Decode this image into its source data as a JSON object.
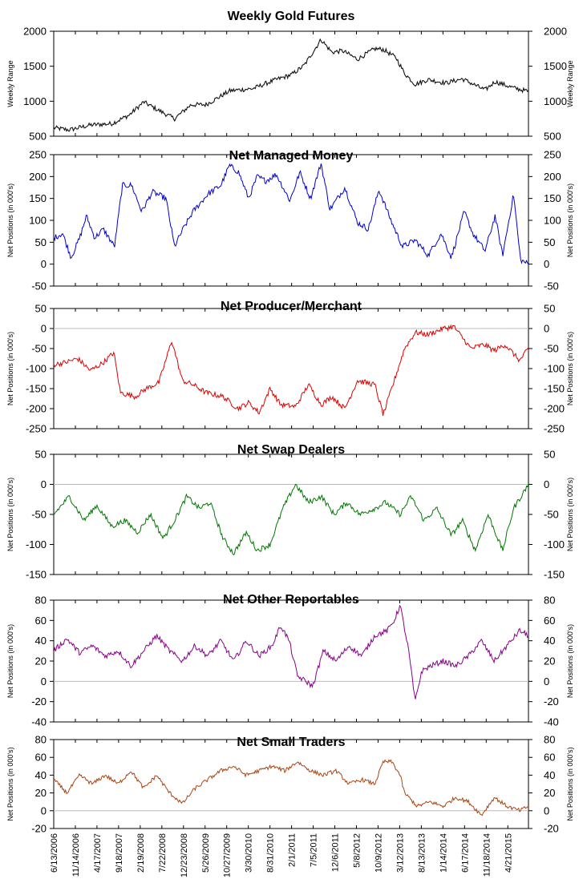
{
  "chart_data": [
    {
      "type": "line",
      "title": "Weekly Gold Futures",
      "ylabel": "Weekly Range",
      "ylim": [
        500,
        2000
      ],
      "yticks": [
        "2000",
        "1500",
        "1000",
        "500"
      ],
      "zero_line": false,
      "color": "#111111",
      "series": [
        {
          "x": [
            "2006-06-13",
            "2006-10-01",
            "2007-03-01",
            "2007-08-01",
            "2007-12-01",
            "2008-03-15",
            "2008-06-01",
            "2008-10-20",
            "2009-02-15",
            "2009-06-01",
            "2009-11-20",
            "2010-05-01",
            "2010-10-01",
            "2011-02-01",
            "2011-05-01",
            "2011-08-30",
            "2011-11-15",
            "2012-02-01",
            "2012-05-15",
            "2012-09-15",
            "2012-11-15",
            "2013-02-15",
            "2013-04-15",
            "2013-06-30",
            "2013-10-01",
            "2014-02-01",
            "2014-06-01",
            "2014-11-10",
            "2015-01-20",
            "2015-06-01",
            "2015-09-15"
          ],
          "values": [
            620,
            590,
            660,
            680,
            800,
            990,
            900,
            750,
            950,
            950,
            1150,
            1180,
            1300,
            1380,
            1510,
            1880,
            1700,
            1720,
            1600,
            1750,
            1740,
            1620,
            1400,
            1240,
            1310,
            1260,
            1320,
            1160,
            1280,
            1190,
            1140
          ]
        }
      ]
    },
    {
      "type": "line",
      "title": "Net Managed Money",
      "ylabel": "Net Positions (in 000's)",
      "ylim": [
        -50,
        250
      ],
      "yticks": [
        "250",
        "200",
        "150",
        "100",
        "50",
        "0",
        "-50"
      ],
      "zero_line": false,
      "color": "#0000cc",
      "series": [
        {
          "x": [
            "2006-06-13",
            "2006-08-15",
            "2006-10-15",
            "2006-12-15",
            "2007-02-01",
            "2007-04-01",
            "2007-06-01",
            "2007-08-20",
            "2007-10-15",
            "2007-12-20",
            "2008-03-01",
            "2008-05-15",
            "2008-08-20",
            "2008-10-20",
            "2008-12-20",
            "2009-03-01",
            "2009-06-15",
            "2009-09-15",
            "2009-11-15",
            "2010-01-20",
            "2010-04-01",
            "2010-06-01",
            "2010-08-01",
            "2010-10-15",
            "2011-01-20",
            "2011-04-01",
            "2011-06-15",
            "2011-08-30",
            "2011-11-01",
            "2012-02-15",
            "2012-05-15",
            "2012-08-01",
            "2012-10-15",
            "2013-01-15",
            "2013-04-01",
            "2013-07-01",
            "2013-10-01",
            "2014-01-01",
            "2014-03-15",
            "2014-06-15",
            "2014-08-15",
            "2014-11-10",
            "2015-01-20",
            "2015-03-15",
            "2015-06-01",
            "2015-07-20",
            "2015-09-15"
          ],
          "values": [
            60,
            70,
            15,
            60,
            110,
            60,
            80,
            40,
            180,
            180,
            120,
            165,
            150,
            40,
            80,
            120,
            160,
            180,
            225,
            210,
            150,
            200,
            190,
            205,
            145,
            210,
            150,
            230,
            125,
            175,
            95,
            80,
            170,
            95,
            40,
            55,
            20,
            70,
            15,
            120,
            70,
            30,
            110,
            20,
            160,
            10,
            0
          ]
        }
      ]
    },
    {
      "type": "line",
      "title": "Net Producer/Merchant",
      "ylabel": "Net Positions (in 000's)",
      "ylim": [
        -250,
        50
      ],
      "yticks": [
        "50",
        "0",
        "-50",
        "-100",
        "-150",
        "-200",
        "-250"
      ],
      "zero_line": true,
      "color": "#dd0000",
      "series": [
        {
          "x": [
            "2006-06-13",
            "2006-09-01",
            "2006-12-01",
            "2007-03-01",
            "2007-06-01",
            "2007-08-15",
            "2007-10-01",
            "2008-01-15",
            "2008-04-01",
            "2008-07-01",
            "2008-10-01",
            "2008-12-15",
            "2009-03-01",
            "2009-06-01",
            "2009-10-01",
            "2010-01-15",
            "2010-04-01",
            "2010-06-15",
            "2010-09-01",
            "2010-11-15",
            "2011-03-01",
            "2011-06-01",
            "2011-09-01",
            "2011-11-15",
            "2012-02-15",
            "2012-05-15",
            "2012-09-15",
            "2012-11-15",
            "2013-02-01",
            "2013-04-15",
            "2013-07-01",
            "2013-10-01",
            "2014-01-15",
            "2014-04-01",
            "2014-08-01",
            "2014-11-01",
            "2015-01-15",
            "2015-04-01",
            "2015-07-15",
            "2015-09-15"
          ],
          "values": [
            -90,
            -85,
            -75,
            -105,
            -85,
            -60,
            -160,
            -170,
            -150,
            -135,
            -30,
            -130,
            -140,
            -160,
            -170,
            -200,
            -185,
            -210,
            -150,
            -190,
            -195,
            -140,
            -190,
            -170,
            -200,
            -130,
            -140,
            -215,
            -130,
            -50,
            -10,
            -15,
            0,
            5,
            -50,
            -40,
            -55,
            -40,
            -80,
            -50
          ]
        }
      ]
    },
    {
      "type": "line",
      "title": "Net Swap Dealers",
      "ylabel": "Net Positions (in 000's)",
      "ylim": [
        -150,
        50
      ],
      "yticks": [
        "50",
        "0",
        "-50",
        "-100",
        "-150"
      ],
      "zero_line": true,
      "color": "#007700",
      "series": [
        {
          "x": [
            "2006-06-13",
            "2006-10-01",
            "2007-01-15",
            "2007-04-15",
            "2007-08-01",
            "2007-11-01",
            "2008-02-01",
            "2008-05-01",
            "2008-08-01",
            "2008-10-20",
            "2009-01-15",
            "2009-04-15",
            "2009-07-01",
            "2009-10-01",
            "2009-12-15",
            "2010-03-15",
            "2010-06-01",
            "2010-09-01",
            "2010-12-01",
            "2011-03-01",
            "2011-06-01",
            "2011-09-01",
            "2011-12-01",
            "2012-03-01",
            "2012-06-01",
            "2012-09-15",
            "2012-12-01",
            "2013-03-15",
            "2013-06-01",
            "2013-09-01",
            "2013-12-01",
            "2014-03-15",
            "2014-06-01",
            "2014-09-01",
            "2014-12-01",
            "2015-03-15",
            "2015-06-01",
            "2015-09-15"
          ],
          "values": [
            -50,
            -20,
            -60,
            -35,
            -70,
            -60,
            -80,
            -50,
            -90,
            -60,
            -20,
            -40,
            -30,
            -90,
            -115,
            -80,
            -110,
            -100,
            -40,
            0,
            -30,
            -20,
            -50,
            -30,
            -50,
            -40,
            -30,
            -50,
            -20,
            -60,
            -40,
            -85,
            -60,
            -110,
            -50,
            -110,
            -40,
            0
          ]
        }
      ]
    },
    {
      "type": "line",
      "title": "Net Other Reportables",
      "ylabel": "Net Positions (in 000's)",
      "ylim": [
        -40,
        80
      ],
      "yticks": [
        "80",
        "60",
        "40",
        "20",
        "0",
        "-20",
        "-40"
      ],
      "zero_line": true,
      "color": "#880088",
      "series": [
        {
          "x": [
            "2006-06-13",
            "2006-09-15",
            "2006-12-15",
            "2007-03-15",
            "2007-06-15",
            "2007-09-15",
            "2007-12-15",
            "2008-03-15",
            "2008-06-15",
            "2008-09-15",
            "2008-12-15",
            "2009-03-15",
            "2009-06-15",
            "2009-09-15",
            "2009-12-15",
            "2010-03-15",
            "2010-06-15",
            "2010-09-15",
            "2010-11-15",
            "2011-01-15",
            "2011-03-15",
            "2011-05-15",
            "2011-07-01",
            "2011-09-15",
            "2011-12-15",
            "2012-03-15",
            "2012-06-15",
            "2012-09-15",
            "2012-12-15",
            "2013-02-01",
            "2013-03-15",
            "2013-05-15",
            "2013-06-30",
            "2013-08-15",
            "2013-10-15",
            "2014-01-15",
            "2014-04-15",
            "2014-07-15",
            "2014-10-15",
            "2015-01-15",
            "2015-04-15",
            "2015-07-15",
            "2015-09-15"
          ],
          "values": [
            30,
            42,
            28,
            35,
            25,
            30,
            15,
            30,
            45,
            30,
            20,
            35,
            25,
            40,
            20,
            40,
            25,
            35,
            55,
            40,
            5,
            0,
            -5,
            30,
            20,
            35,
            25,
            45,
            50,
            60,
            75,
            30,
            -20,
            10,
            15,
            20,
            15,
            25,
            40,
            20,
            35,
            50,
            45
          ]
        }
      ]
    },
    {
      "type": "line",
      "title": "Net Small Traders",
      "ylabel": "Net Positions (in 000's)",
      "ylim": [
        -20,
        80
      ],
      "yticks": [
        "80",
        "60",
        "40",
        "20",
        "0",
        "-20"
      ],
      "zero_line": true,
      "color": "#aa4411",
      "series": [
        {
          "x": [
            "2006-06-13",
            "2006-09-15",
            "2006-12-15",
            "2007-03-15",
            "2007-06-15",
            "2007-09-15",
            "2007-12-15",
            "2008-03-15",
            "2008-06-15",
            "2008-09-15",
            "2008-12-15",
            "2009-03-15",
            "2009-06-15",
            "2009-09-15",
            "2009-12-15",
            "2010-03-15",
            "2010-06-15",
            "2010-09-15",
            "2010-12-15",
            "2011-03-15",
            "2011-06-15",
            "2011-09-15",
            "2011-12-15",
            "2012-03-15",
            "2012-06-15",
            "2012-09-15",
            "2012-11-15",
            "2013-01-15",
            "2013-03-15",
            "2013-04-15",
            "2013-07-15",
            "2013-10-15",
            "2014-01-15",
            "2014-04-15",
            "2014-07-15",
            "2014-10-15",
            "2015-01-15",
            "2015-04-15",
            "2015-07-15",
            "2015-09-15"
          ],
          "values": [
            35,
            20,
            40,
            30,
            40,
            30,
            45,
            25,
            40,
            20,
            8,
            25,
            35,
            45,
            50,
            40,
            45,
            50,
            45,
            55,
            45,
            40,
            45,
            30,
            35,
            30,
            55,
            55,
            40,
            20,
            5,
            10,
            5,
            15,
            10,
            -5,
            15,
            5,
            0,
            5
          ]
        }
      ]
    }
  ],
  "x_axis": {
    "start": "2006-06-13",
    "end": "2015-09-15",
    "tick_labels": [
      "6/13/2006",
      "11/14/2006",
      "4/17/2007",
      "9/18/2007",
      "2/19/2008",
      "7/22/2008",
      "12/23/2008",
      "5/26/2009",
      "10/27/2009",
      "3/30/2010",
      "8/31/2010",
      "2/1/2011",
      "7/5/2011",
      "12/6/2011",
      "5/8/2012",
      "10/9/2012",
      "3/12/2013",
      "8/13/2013",
      "1/14/2014",
      "6/17/2014",
      "11/18/2014",
      "4/21/2015"
    ]
  }
}
